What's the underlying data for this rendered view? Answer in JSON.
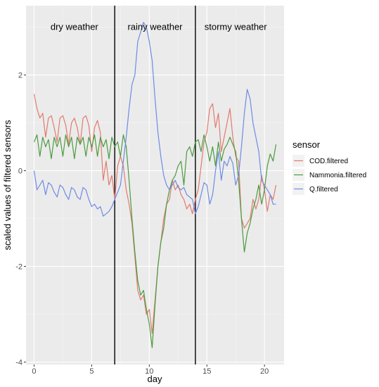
{
  "chart_data": {
    "type": "line",
    "title": "",
    "xlabel": "day",
    "ylabel": "scaled values of filtered sensors",
    "xlim": [
      -0.7,
      21.7
    ],
    "ylim": [
      -4.05,
      3.45
    ],
    "x_ticks": [
      0,
      5,
      10,
      15,
      20
    ],
    "y_ticks": [
      -4,
      -2,
      0,
      2
    ],
    "x_tick_labels": [
      "0",
      "5",
      "10",
      "15",
      "20"
    ],
    "y_tick_labels": [
      "-4",
      "-2",
      "0",
      "2"
    ],
    "grid": true,
    "legend": {
      "title": "sensor",
      "placement": "right",
      "entries": [
        "COD.filtered",
        "Nammonia.filtered",
        "Q.filtered"
      ]
    },
    "annotations": [
      {
        "text": "dry weather",
        "x": 3.5,
        "y": 3.0
      },
      {
        "text": "rainy weather",
        "x": 10.5,
        "y": 3.0
      },
      {
        "text": "stormy weather",
        "x": 17.5,
        "y": 3.0
      }
    ],
    "vlines": [
      7,
      14
    ],
    "series": [
      {
        "name": "COD.filtered",
        "color": "#E07B6E",
        "x": [
          0,
          0.25,
          0.5,
          0.75,
          1,
          1.25,
          1.5,
          1.75,
          2,
          2.25,
          2.5,
          2.75,
          3,
          3.25,
          3.5,
          3.75,
          4,
          4.25,
          4.5,
          4.75,
          5,
          5.25,
          5.5,
          5.75,
          6,
          6.25,
          6.5,
          6.75,
          7,
          7.25,
          7.5,
          7.75,
          8,
          8.25,
          8.5,
          8.75,
          9,
          9.25,
          9.5,
          9.75,
          10,
          10.25,
          10.5,
          10.75,
          11,
          11.25,
          11.5,
          11.75,
          12,
          12.25,
          12.5,
          12.75,
          13,
          13.25,
          13.5,
          13.75,
          14,
          14.25,
          14.5,
          14.75,
          15,
          15.25,
          15.5,
          15.75,
          16,
          16.25,
          16.5,
          16.75,
          17,
          17.25,
          17.5,
          17.75,
          18,
          18.25,
          18.5,
          18.75,
          19,
          19.25,
          19.5,
          19.75,
          20,
          20.25,
          20.5,
          20.75,
          21
        ],
        "y": [
          1.6,
          1.3,
          1.1,
          1.2,
          0.7,
          1.1,
          1.15,
          0.9,
          0.6,
          1.1,
          1.15,
          0.95,
          0.55,
          1.0,
          1.1,
          0.9,
          0.55,
          1.1,
          1.15,
          0.95,
          0.4,
          0.9,
          1.05,
          0.8,
          -0.2,
          0.2,
          -0.3,
          -0.1,
          -0.6,
          0.1,
          0.3,
          0.1,
          -0.4,
          -0.7,
          -1.1,
          -1.8,
          -2.5,
          -2.7,
          -2.6,
          -3.0,
          -2.9,
          -3.4,
          -2.7,
          -2.0,
          -1.5,
          -1.0,
          -0.7,
          -0.6,
          -0.2,
          -0.4,
          -0.3,
          -0.5,
          -0.6,
          -0.8,
          -0.7,
          -0.9,
          -0.6,
          -0.4,
          0.1,
          0.6,
          0.8,
          1.3,
          1.4,
          0.9,
          1.2,
          0.4,
          0.7,
          1.0,
          1.3,
          0.7,
          0.3,
          0.2,
          -1.0,
          -1.2,
          -1.1,
          -1.0,
          -0.6,
          -0.8,
          -0.6,
          -0.1,
          -0.4,
          -0.85,
          -0.5,
          -0.6,
          -0.3
        ]
      },
      {
        "name": "Nammonia.filtered",
        "color": "#4C9B40",
        "x": [
          0,
          0.25,
          0.5,
          0.75,
          1,
          1.25,
          1.5,
          1.75,
          2,
          2.25,
          2.5,
          2.75,
          3,
          3.25,
          3.5,
          3.75,
          4,
          4.25,
          4.5,
          4.75,
          5,
          5.25,
          5.5,
          5.75,
          6,
          6.25,
          6.5,
          6.75,
          7,
          7.25,
          7.5,
          7.75,
          8,
          8.25,
          8.5,
          8.75,
          9,
          9.25,
          9.5,
          9.75,
          10,
          10.25,
          10.5,
          10.75,
          11,
          11.25,
          11.5,
          11.75,
          12,
          12.25,
          12.5,
          12.75,
          13,
          13.25,
          13.5,
          13.75,
          14,
          14.25,
          14.5,
          14.75,
          15,
          15.25,
          15.5,
          15.75,
          16,
          16.25,
          16.5,
          16.75,
          17,
          17.25,
          17.5,
          17.75,
          18,
          18.25,
          18.5,
          18.75,
          19,
          19.25,
          19.5,
          19.75,
          20,
          20.25,
          20.5,
          20.75,
          21
        ],
        "y": [
          0.6,
          0.75,
          0.3,
          0.7,
          0.5,
          0.65,
          0.25,
          0.7,
          0.5,
          0.7,
          0.3,
          0.75,
          0.5,
          0.7,
          0.25,
          0.7,
          0.55,
          0.7,
          0.3,
          0.7,
          0.5,
          0.75,
          0.3,
          0.7,
          0.5,
          0.65,
          0.25,
          0.7,
          0.5,
          0.6,
          0.3,
          0.75,
          0.5,
          -0.2,
          -1.0,
          -1.7,
          -2.3,
          -2.6,
          -2.5,
          -2.9,
          -3.2,
          -3.7,
          -2.8,
          -2.0,
          -1.5,
          -1.2,
          -0.7,
          -0.4,
          -0.2,
          -0.1,
          0.1,
          0.2,
          -0.3,
          0.4,
          0.5,
          0.3,
          0.6,
          0.65,
          0.4,
          0.75,
          0.5,
          0.2,
          0.5,
          0.1,
          0.6,
          0.2,
          0.45,
          0.55,
          0.7,
          0.55,
          0.4,
          -0.2,
          -1.0,
          -1.7,
          -1.3,
          -1.1,
          -0.8,
          -0.6,
          -0.3,
          -0.7,
          -0.4,
          0.1,
          0.35,
          0.2,
          0.55
        ]
      },
      {
        "name": "Q.filtered",
        "color": "#6E8BE6",
        "x": [
          0,
          0.25,
          0.5,
          0.75,
          1,
          1.25,
          1.5,
          1.75,
          2,
          2.25,
          2.5,
          2.75,
          3,
          3.25,
          3.5,
          3.75,
          4,
          4.25,
          4.5,
          4.75,
          5,
          5.25,
          5.5,
          5.75,
          6,
          6.25,
          6.5,
          6.75,
          7,
          7.25,
          7.5,
          7.75,
          8,
          8.25,
          8.5,
          8.75,
          9,
          9.25,
          9.5,
          9.75,
          10,
          10.25,
          10.5,
          10.75,
          11,
          11.25,
          11.5,
          11.75,
          12,
          12.25,
          12.5,
          12.75,
          13,
          13.25,
          13.5,
          13.75,
          14,
          14.25,
          14.5,
          14.75,
          15,
          15.25,
          15.5,
          15.75,
          16,
          16.25,
          16.5,
          16.75,
          17,
          17.25,
          17.5,
          17.75,
          18,
          18.25,
          18.5,
          18.75,
          19,
          19.25,
          19.5,
          19.75,
          20,
          20.25,
          20.5,
          20.75,
          21
        ],
        "y": [
          0.0,
          -0.4,
          -0.3,
          -0.2,
          -0.5,
          -0.25,
          -0.3,
          -0.45,
          -0.55,
          -0.3,
          -0.35,
          -0.5,
          -0.6,
          -0.35,
          -0.4,
          -0.55,
          -0.6,
          -0.35,
          -0.4,
          -0.6,
          -0.75,
          -0.7,
          -0.8,
          -0.75,
          -0.95,
          -0.9,
          -0.85,
          -0.75,
          -0.6,
          -0.45,
          -0.3,
          0.2,
          0.7,
          1.3,
          1.8,
          2.0,
          2.7,
          2.9,
          3.1,
          3.0,
          2.7,
          2.3,
          1.5,
          0.8,
          0.3,
          -0.1,
          -0.3,
          -0.4,
          -0.3,
          -0.2,
          -0.35,
          -0.4,
          -0.35,
          -0.5,
          -0.55,
          -0.6,
          -0.9,
          -0.75,
          -0.5,
          -0.25,
          -0.3,
          -0.7,
          -0.5,
          0.0,
          0.4,
          -0.2,
          0.2,
          0.1,
          0.3,
          0.15,
          -0.3,
          -0.1,
          0.5,
          1.2,
          1.7,
          1.5,
          1.0,
          0.7,
          0.4,
          -0.2,
          -0.3,
          -0.4,
          -0.5,
          -0.7,
          -0.7
        ]
      }
    ]
  }
}
